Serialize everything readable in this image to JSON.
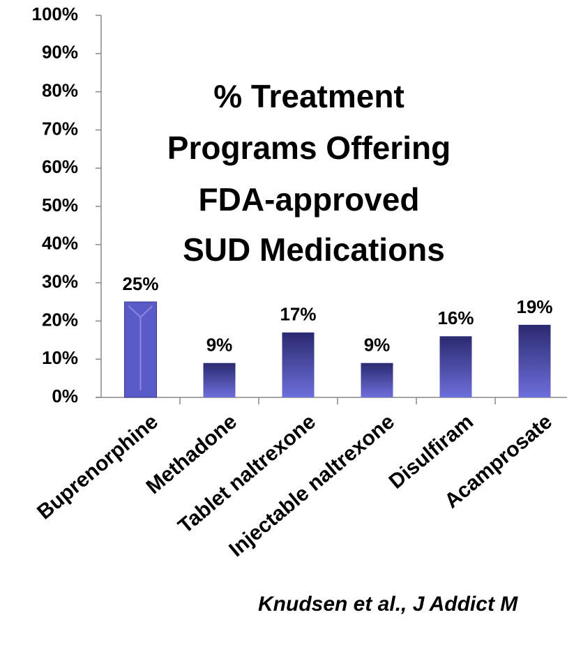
{
  "chart_data": {
    "type": "bar",
    "title": [
      "% Treatment",
      "Programs Offering",
      "FDA-approved",
      "SUD Medications"
    ],
    "categories": [
      "Buprenorphine",
      "Methadone",
      "Tablet naltrexone",
      "Injectable naltrexone",
      "Disulfiram",
      "Acamprosate"
    ],
    "values": [
      25,
      9,
      17,
      9,
      16,
      19
    ],
    "value_labels": [
      "25%",
      "9%",
      "17%",
      "9%",
      "16%",
      "19%"
    ],
    "color": "#5a5ac8",
    "ylim": [
      0,
      100
    ],
    "yticks": [
      {
        "value": 0,
        "label": "0%"
      },
      {
        "value": 10,
        "label": "10%"
      },
      {
        "value": 20,
        "label": "20%"
      },
      {
        "value": 30,
        "label": "30%"
      },
      {
        "value": 40,
        "label": "40%"
      },
      {
        "value": 50,
        "label": "50%"
      },
      {
        "value": 60,
        "label": "60%"
      },
      {
        "value": 70,
        "label": "70%"
      },
      {
        "value": 80,
        "label": "80%"
      },
      {
        "value": 90,
        "label": "90%"
      },
      {
        "value": 100,
        "label": "100%"
      }
    ],
    "grid": false,
    "annotation": "Knudsen et al., J Addict M"
  }
}
